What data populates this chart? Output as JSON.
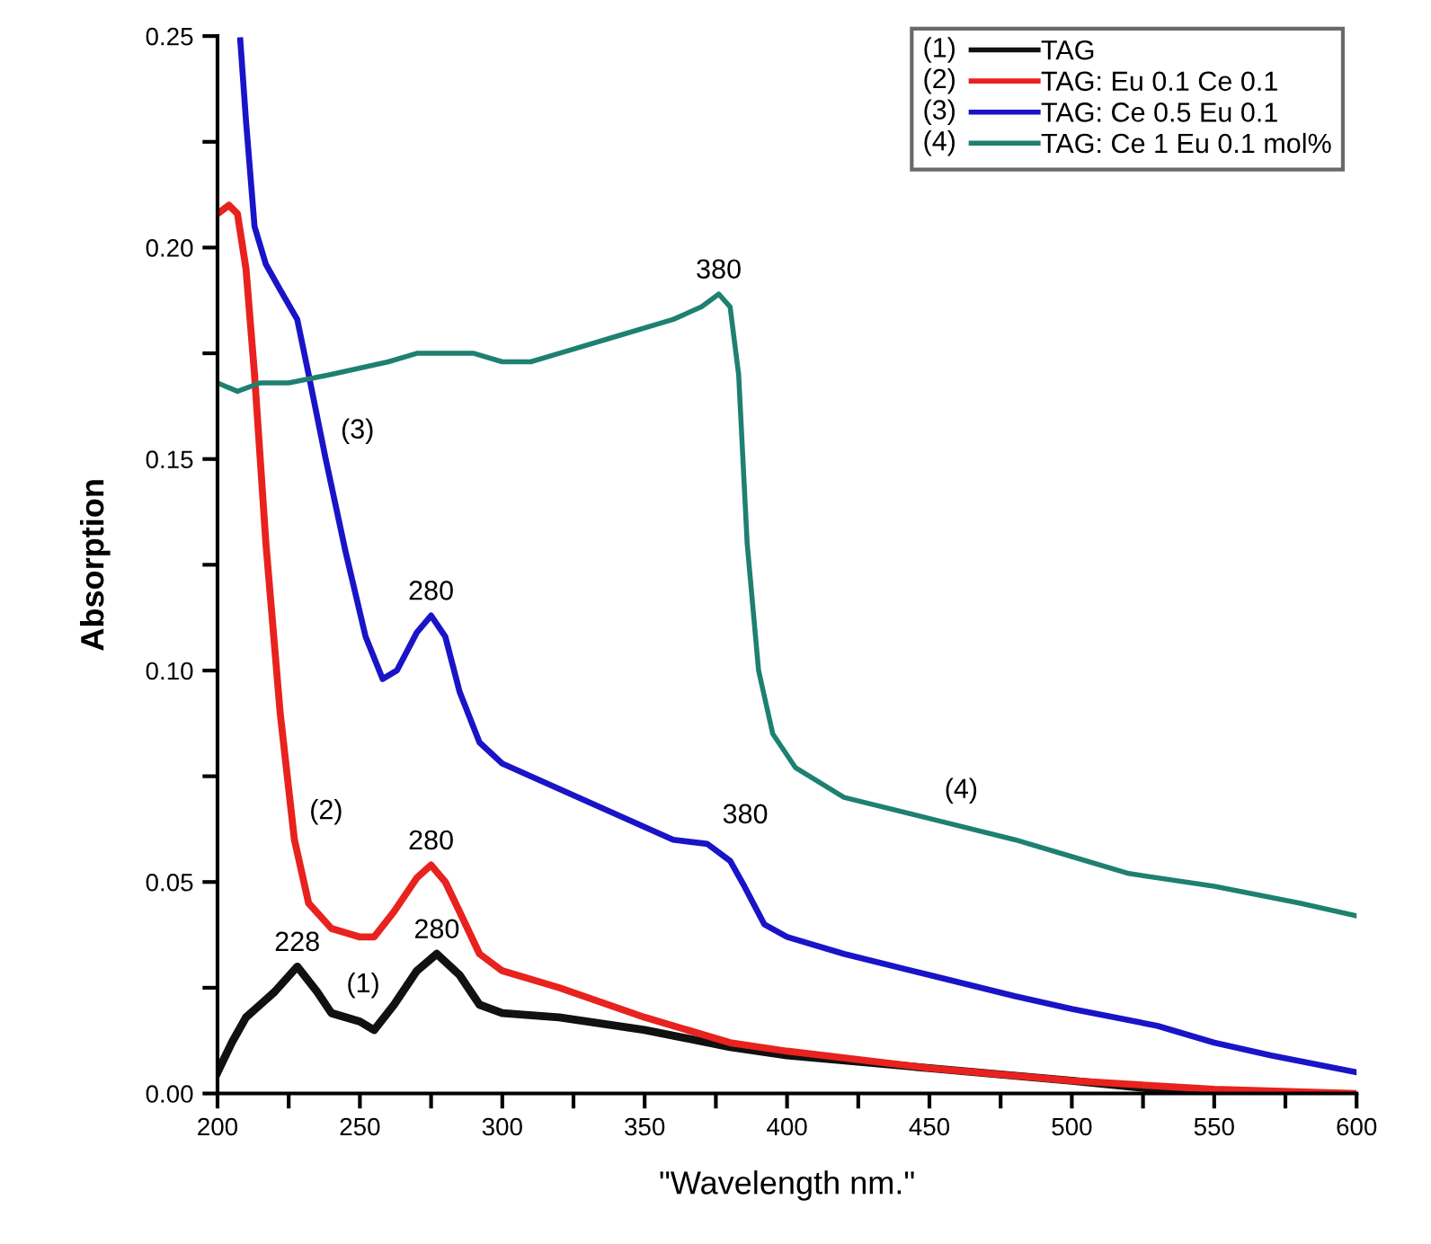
{
  "chart_data": {
    "type": "line",
    "xlabel": "\"Wavelength nm.\"",
    "ylabel": "Absorption",
    "xlim": [
      200,
      600
    ],
    "ylim": [
      0,
      0.25
    ],
    "xticks": [
      200,
      {
        "value": 225,
        "label": null
      },
      250,
      {
        "value": 275,
        "label": null
      },
      300,
      {
        "value": 325,
        "label": null
      },
      350,
      {
        "value": 375,
        "label": null
      },
      400,
      {
        "value": 425,
        "label": null
      },
      450,
      {
        "value": 475,
        "label": null
      },
      500,
      {
        "value": 525,
        "label": null
      },
      550,
      {
        "value": 575,
        "label": null
      },
      600
    ],
    "yticks": [
      {
        "value": 0,
        "label": "0.00"
      },
      {
        "value": 0.025,
        "label": null
      },
      {
        "value": 0.05,
        "label": "0.05"
      },
      {
        "value": 0.075,
        "label": null
      },
      {
        "value": 0.1,
        "label": "0.10"
      },
      {
        "value": 0.125,
        "label": null
      },
      {
        "value": 0.15,
        "label": "0.15"
      },
      {
        "value": 0.175,
        "label": null
      },
      {
        "value": 0.2,
        "label": "0.20"
      },
      {
        "value": 0.225,
        "label": null
      },
      {
        "value": 0.25,
        "label": "0.25"
      }
    ],
    "grid": false,
    "legend": "top right",
    "marker": "none",
    "line_style": "solid",
    "series": [
      {
        "name": "TAG",
        "color": "#111111",
        "x": [
          200,
          205,
          210,
          215,
          220,
          228,
          235,
          240,
          250,
          255,
          262,
          270,
          277,
          285,
          292,
          300,
          320,
          350,
          380,
          400,
          450,
          500,
          530,
          550
        ],
        "values": [
          0.005,
          0.012,
          0.018,
          0.021,
          0.024,
          0.03,
          0.024,
          0.019,
          0.017,
          0.015,
          0.021,
          0.029,
          0.033,
          0.028,
          0.021,
          0.019,
          0.018,
          0.015,
          0.011,
          0.009,
          0.006,
          0.003,
          0.001,
          0.0
        ]
      },
      {
        "name": "TAG: Eu 0.1 Ce 0.1",
        "color": "#e8221e",
        "x": [
          200,
          204,
          207,
          210,
          213,
          217,
          222,
          227,
          232,
          240,
          250,
          255,
          262,
          270,
          275,
          280,
          285,
          292,
          300,
          320,
          350,
          380,
          400,
          450,
          500,
          550,
          600
        ],
        "values": [
          0.208,
          0.21,
          0.208,
          0.195,
          0.17,
          0.13,
          0.09,
          0.06,
          0.045,
          0.039,
          0.037,
          0.037,
          0.043,
          0.051,
          0.054,
          0.05,
          0.043,
          0.033,
          0.029,
          0.025,
          0.018,
          0.012,
          0.01,
          0.006,
          0.003,
          0.001,
          0.0
        ]
      },
      {
        "name": "TAG: Ce 0.5 Eu 0.1",
        "color": "#1a14c8",
        "x": [
          208,
          210,
          213,
          217,
          222,
          228,
          232,
          238,
          245,
          252,
          258,
          263,
          270,
          275,
          280,
          285,
          292,
          300,
          320,
          340,
          360,
          372,
          380,
          385,
          392,
          400,
          420,
          450,
          480,
          500,
          530,
          550,
          570,
          600
        ],
        "values": [
          0.249,
          0.23,
          0.205,
          0.196,
          0.19,
          0.183,
          0.17,
          0.15,
          0.128,
          0.108,
          0.098,
          0.1,
          0.109,
          0.113,
          0.108,
          0.095,
          0.083,
          0.078,
          0.072,
          0.066,
          0.06,
          0.059,
          0.055,
          0.049,
          0.04,
          0.037,
          0.033,
          0.028,
          0.023,
          0.02,
          0.016,
          0.012,
          0.009,
          0.005
        ]
      },
      {
        "name": "TAG: Ce 1 Eu 0.1 mol%",
        "color": "#1e8070",
        "x": [
          200,
          207,
          215,
          225,
          240,
          260,
          270,
          290,
          300,
          310,
          320,
          340,
          360,
          370,
          376,
          380,
          383,
          386,
          390,
          395,
          403,
          420,
          450,
          480,
          500,
          520,
          550,
          580,
          600
        ],
        "values": [
          0.168,
          0.166,
          0.168,
          0.168,
          0.17,
          0.173,
          0.175,
          0.175,
          0.173,
          0.173,
          0.175,
          0.179,
          0.183,
          0.186,
          0.189,
          0.186,
          0.17,
          0.13,
          0.1,
          0.085,
          0.077,
          0.07,
          0.065,
          0.06,
          0.056,
          0.052,
          0.049,
          0.045,
          0.042
        ]
      }
    ],
    "annotations": [
      {
        "text": "(1)",
        "x": 240,
        "y": 0.019
      },
      {
        "text": "(2)",
        "x": 227,
        "y": 0.06
      },
      {
        "text": "(3)",
        "x": 238,
        "y": 0.15
      },
      {
        "text": "(4)",
        "x": 450,
        "y": 0.065
      },
      {
        "text": "228",
        "x": 228,
        "y": 0.03
      },
      {
        "text": "280",
        "x": 277,
        "y": 0.033
      },
      {
        "text": "280",
        "x": 275,
        "y": 0.054
      },
      {
        "text": "280",
        "x": 275,
        "y": 0.113
      },
      {
        "text": "380",
        "x": 372,
        "y": 0.059
      },
      {
        "text": "380",
        "x": 376,
        "y": 0.189
      }
    ]
  }
}
